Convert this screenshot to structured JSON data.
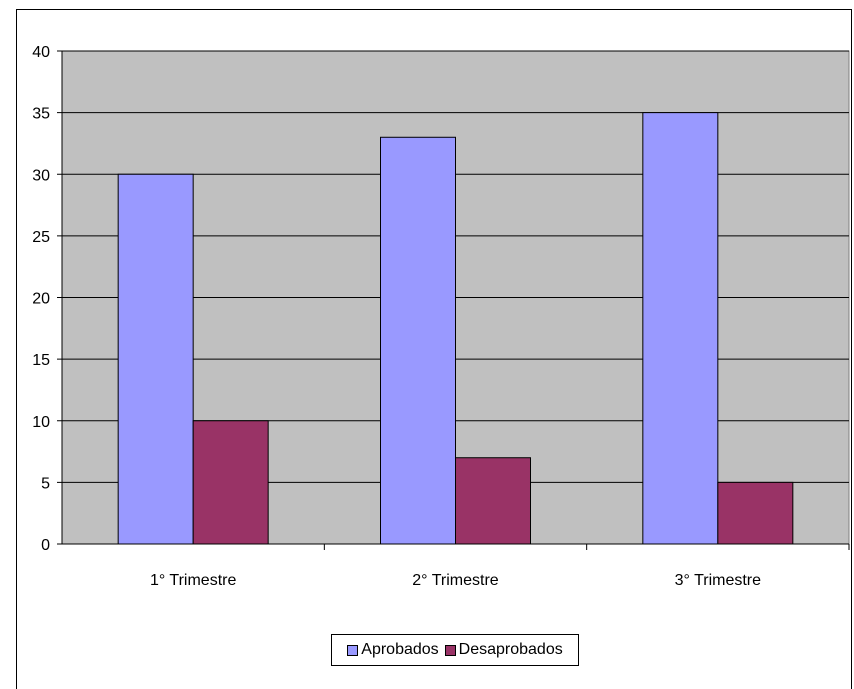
{
  "chart_data": {
    "type": "bar",
    "categories": [
      "1° Trimestre",
      "2° Trimestre",
      "3° Trimestre"
    ],
    "series": [
      {
        "name": "Aprobados",
        "values": [
          30,
          33,
          35
        ],
        "color": "#9999ff"
      },
      {
        "name": "Desaprobados",
        "values": [
          10,
          7,
          5
        ],
        "color": "#993366"
      }
    ],
    "ylim": [
      0,
      40
    ],
    "yticks": [
      "0",
      "5",
      "10",
      "15",
      "20",
      "25",
      "30",
      "35",
      "40"
    ],
    "grid": true,
    "plot_background": "#c0c0c0",
    "legend_position": "bottom"
  }
}
